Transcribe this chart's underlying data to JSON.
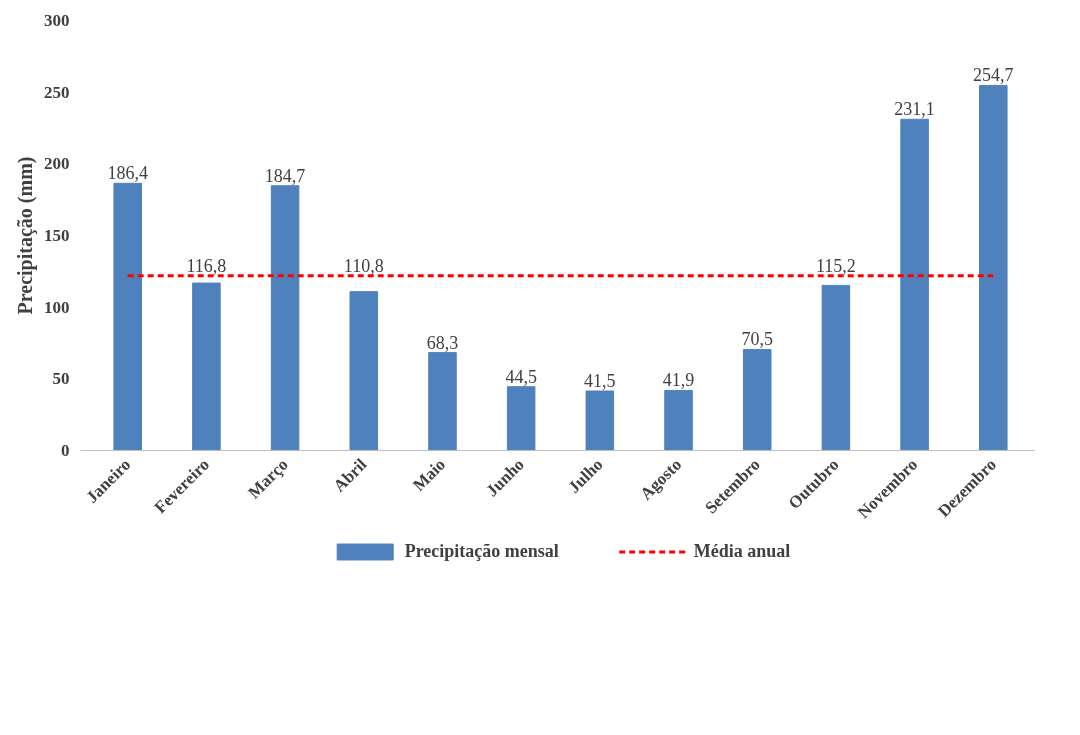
{
  "chart_data": {
    "type": "bar",
    "ylabel": "Precipitação (mm)",
    "categories": [
      "Janeiro",
      "Fevereiro",
      "Março",
      "Abril",
      "Maio",
      "Junho",
      "Julho",
      "Agosto",
      "Setembro",
      "Outubro",
      "Novembro",
      "Dezembro"
    ],
    "series": [
      {
        "name": "Precipitação mensal",
        "color": "#4f81bd",
        "values": [
          186.4,
          116.8,
          184.7,
          110.8,
          68.3,
          44.5,
          41.5,
          41.9,
          70.5,
          115.2,
          231.1,
          254.7
        ],
        "value_labels": [
          "186,4",
          "116,8",
          "184,7",
          "110,8",
          "68,3",
          "44,5",
          "41,5",
          "41,9",
          "70,5",
          "115,2",
          "231,1",
          "254,7"
        ]
      },
      {
        "name": "Média anual",
        "type": "line",
        "color": "#ff0000",
        "line_style": "dashed",
        "values": [
          122,
          122,
          122,
          122,
          122,
          122,
          122,
          122,
          122,
          122,
          122,
          122
        ]
      }
    ],
    "ylim": [
      0,
      300
    ],
    "yticks": [
      0,
      50,
      100,
      150,
      200,
      250,
      300
    ],
    "grid": false,
    "legend": "bottom"
  }
}
